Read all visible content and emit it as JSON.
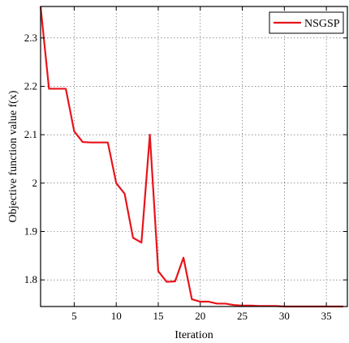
{
  "chart_data": {
    "type": "line",
    "title": "",
    "xlabel": "Iteration",
    "ylabel": "Objective function value f(x)",
    "xlim": [
      1,
      37.5
    ],
    "ylim": [
      1.745,
      2.365
    ],
    "xticks": [
      5,
      10,
      15,
      20,
      25,
      30,
      35
    ],
    "yticks": [
      1.8,
      1.9,
      2.0,
      2.1,
      2.2,
      2.3
    ],
    "ytick_labels": [
      "1.8",
      "1.9",
      "2",
      "2.1",
      "2.2",
      "2.3"
    ],
    "grid": true,
    "legend_position": "top-right",
    "series": [
      {
        "name": "NSGSP",
        "color": "#e8141b",
        "x": [
          1,
          2,
          3,
          4,
          5,
          6,
          7,
          8,
          9,
          10,
          11,
          12,
          13,
          14,
          15,
          16,
          17,
          18,
          19,
          20,
          21,
          22,
          23,
          24,
          25,
          26,
          27,
          28,
          29,
          30,
          31,
          32,
          33,
          34,
          35,
          36,
          37
        ],
        "y": [
          2.365,
          2.195,
          2.195,
          2.195,
          2.107,
          2.085,
          2.084,
          2.084,
          2.084,
          2.0,
          1.978,
          1.887,
          1.877,
          2.1,
          1.818,
          1.796,
          1.797,
          1.846,
          1.76,
          1.755,
          1.755,
          1.751,
          1.751,
          1.748,
          1.747,
          1.747,
          1.746,
          1.746,
          1.746,
          1.745,
          1.745,
          1.745,
          1.745,
          1.745,
          1.745,
          1.745,
          1.745
        ]
      }
    ]
  }
}
